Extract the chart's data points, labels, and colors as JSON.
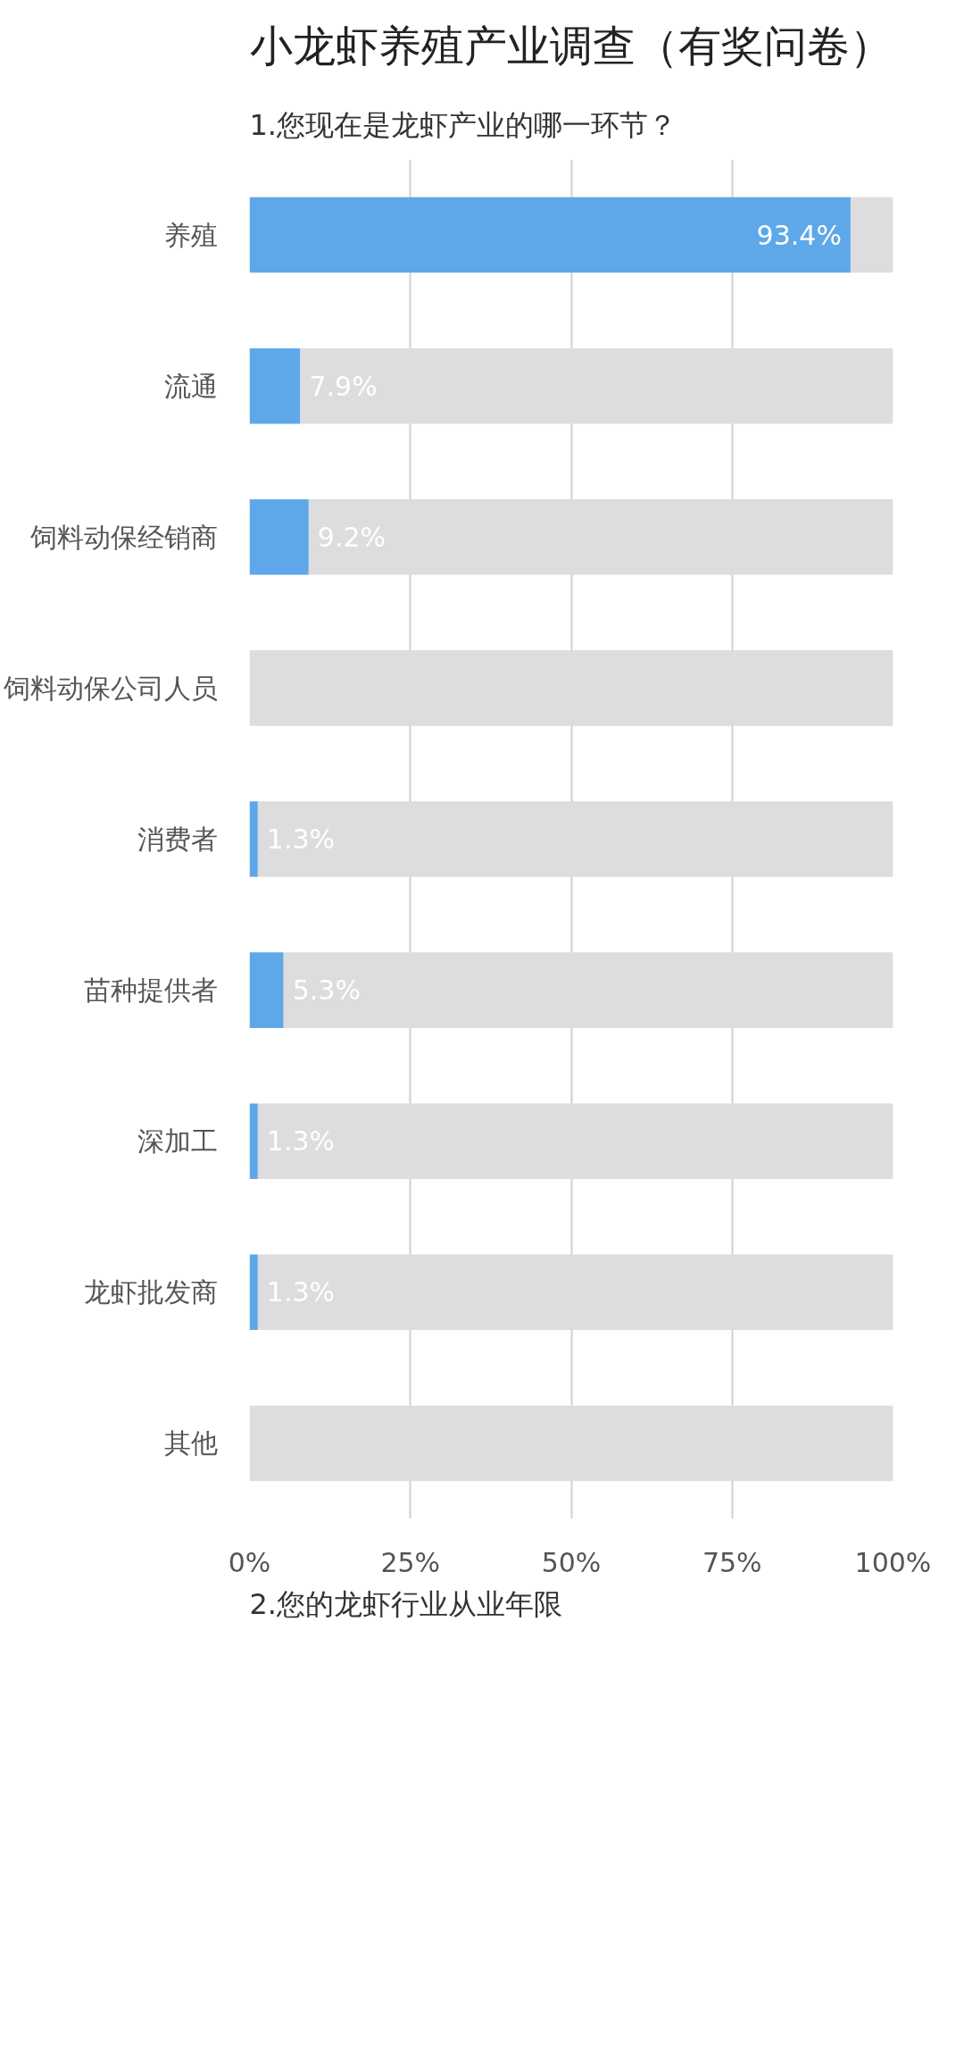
{
  "chart_data": {
    "type": "bar",
    "orientation": "horizontal",
    "stacked": true,
    "title": "小龙虾养殖产业调查（有奖问卷）",
    "subtitle": "1.您现在是龙虾产业的哪一环节？",
    "categories": [
      "养殖",
      "流通",
      "饲料动保经销商",
      "饲料动保公司人员",
      "消费者",
      "苗种提供者",
      "深加工",
      "龙虾批发商",
      "其他"
    ],
    "series": [
      {
        "color": "#5ea8e9",
        "values": [
          93.4,
          7.9,
          9.2,
          0,
          1.3,
          5.3,
          1.3,
          1.3,
          0
        ],
        "value_labels": [
          "93.4%",
          "7.9%",
          "9.2%",
          null,
          "1.3%",
          "5.3%",
          "1.3%",
          "1.3%",
          null
        ]
      },
      {
        "color": "#dddcde",
        "values": [
          6.6,
          92.1,
          90.8,
          100,
          98.7,
          94.7,
          98.7,
          98.7,
          100
        ]
      }
    ],
    "xlim": [
      0,
      100
    ],
    "xticks": [
      {
        "value": 0,
        "label": "0%"
      },
      {
        "value": 25,
        "label": "25%"
      },
      {
        "value": 50,
        "label": "50%"
      },
      {
        "value": 75,
        "label": "75%"
      },
      {
        "value": 100,
        "label": "100%"
      }
    ],
    "grid": "x",
    "annotations": [
      "2.您的龙虾行业从业年限"
    ]
  }
}
